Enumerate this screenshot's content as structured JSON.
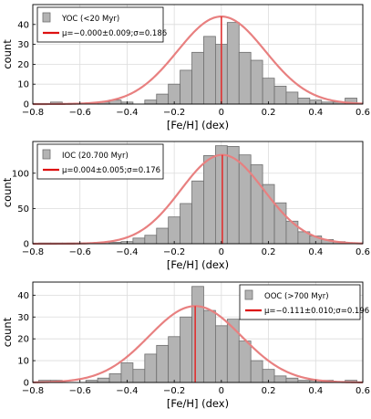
{
  "chart_data": [
    {
      "type": "bar",
      "legend": {
        "placement": "top-left",
        "hist_label": "YOC (<20 Myr)",
        "fit_label": "μ=−0.000±0.009;σ=0.186"
      },
      "xlabel": "[Fe/H] (dex)",
      "ylabel": "count",
      "xlim": [
        -0.8,
        0.6
      ],
      "ylim": [
        0,
        50
      ],
      "xticks": [
        "−0.8",
        "−0.6",
        "−0.4",
        "−0.2",
        "0",
        "0.2",
        "0.4",
        "0.6"
      ],
      "yticks": [
        "0",
        "10",
        "20",
        "30",
        "40"
      ],
      "grid": true,
      "bin_width": 0.05,
      "bins_left": [
        -0.775,
        -0.725,
        -0.675,
        -0.625,
        -0.575,
        -0.525,
        -0.475,
        -0.425,
        -0.375,
        -0.325,
        -0.275,
        -0.225,
        -0.175,
        -0.125,
        -0.075,
        -0.025,
        0.025,
        0.075,
        0.125,
        0.175,
        0.225,
        0.275,
        0.325,
        0.375,
        0.425,
        0.475,
        0.525
      ],
      "values": [
        0,
        1,
        0,
        0,
        0,
        1,
        2,
        1,
        0,
        2,
        5,
        10,
        17,
        26,
        34,
        30,
        41,
        26,
        22,
        13,
        9,
        6,
        3,
        2,
        1,
        1,
        3
      ],
      "fit": {
        "mu": 0.0,
        "sigma": 0.186,
        "peak": 44
      },
      "mean_line": 0.0,
      "colors": {
        "bar": "#b3b3b3",
        "fit": "#e88080",
        "mean": "#e03030",
        "legend_line": "#dd1111"
      }
    },
    {
      "type": "bar",
      "legend": {
        "placement": "top-left",
        "hist_label": "IOC (20.700 Myr)",
        "fit_label": "μ=0.004±0.005;σ=0.176"
      },
      "xlabel": "[Fe/H] (dex)",
      "ylabel": "count",
      "xlim": [
        -0.8,
        0.6
      ],
      "ylim": [
        0,
        145
      ],
      "xticks": [
        "−0.8",
        "−0.6",
        "−0.4",
        "−0.2",
        "0",
        "0.2",
        "0.4",
        "0.6"
      ],
      "yticks": [
        "0",
        "50",
        "100"
      ],
      "grid": true,
      "bin_width": 0.05,
      "bins_left": [
        -0.775,
        -0.725,
        -0.675,
        -0.625,
        -0.575,
        -0.525,
        -0.475,
        -0.425,
        -0.375,
        -0.325,
        -0.275,
        -0.225,
        -0.175,
        -0.125,
        -0.075,
        -0.025,
        0.025,
        0.075,
        0.125,
        0.175,
        0.225,
        0.275,
        0.325,
        0.375,
        0.425,
        0.475,
        0.525
      ],
      "values": [
        1,
        1,
        1,
        1,
        1,
        2,
        2,
        3,
        8,
        12,
        22,
        38,
        57,
        89,
        125,
        139,
        138,
        126,
        112,
        84,
        58,
        32,
        17,
        11,
        6,
        3,
        1
      ],
      "fit": {
        "mu": 0.004,
        "sigma": 0.176,
        "peak": 126
      },
      "mean_line": 0.004,
      "colors": {
        "bar": "#b3b3b3",
        "fit": "#e88080",
        "mean": "#e03030",
        "legend_line": "#dd1111"
      }
    },
    {
      "type": "bar",
      "legend": {
        "placement": "top-right",
        "hist_label": "OOC (>700 Myr)",
        "fit_label": "μ=−0.111±0.010;σ=0.196"
      },
      "xlabel": "[Fe/H] (dex)",
      "ylabel": "count",
      "xlim": [
        -0.8,
        0.6
      ],
      "ylim": [
        0,
        46
      ],
      "xticks": [
        "−0.8",
        "−0.6",
        "−0.4",
        "−0.2",
        "0",
        "0.2",
        "0.4",
        "0.6"
      ],
      "yticks": [
        "0",
        "10",
        "20",
        "30",
        "40"
      ],
      "grid": true,
      "bin_width": 0.05,
      "bins_left": [
        -0.775,
        -0.725,
        -0.675,
        -0.625,
        -0.575,
        -0.525,
        -0.475,
        -0.425,
        -0.375,
        -0.325,
        -0.275,
        -0.225,
        -0.175,
        -0.125,
        -0.075,
        -0.025,
        0.025,
        0.075,
        0.125,
        0.175,
        0.225,
        0.275,
        0.325,
        0.375,
        0.425,
        0.475,
        0.525
      ],
      "values": [
        1,
        1,
        0,
        0,
        1,
        2,
        4,
        9,
        6,
        13,
        17,
        21,
        30,
        44,
        33,
        26,
        29,
        19,
        10,
        6,
        3,
        2,
        1,
        1,
        1,
        0,
        1
      ],
      "fit": {
        "mu": -0.111,
        "sigma": 0.196,
        "peak": 35
      },
      "mean_line": -0.111,
      "colors": {
        "bar": "#b3b3b3",
        "fit": "#e88080",
        "mean": "#e03030",
        "legend_line": "#dd1111"
      }
    }
  ]
}
